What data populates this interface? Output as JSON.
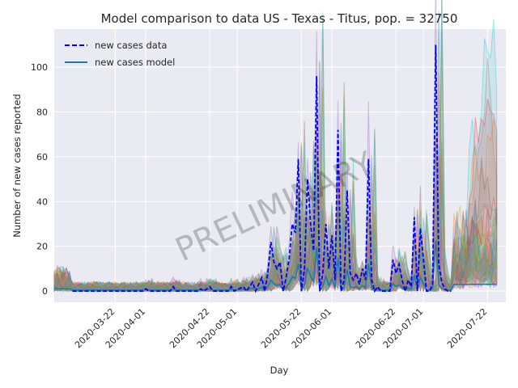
{
  "chart_data": {
    "type": "line",
    "title": "Model comparison to data US - Texas - Titus, pop. = 32750",
    "xlabel": "Day",
    "ylabel": "Number of new cases reported",
    "watermark": "PRELIMINARY",
    "x_range": [
      "2020-03-02",
      "2020-07-28"
    ],
    "ylim": [
      -5,
      117
    ],
    "yticks": [
      0,
      20,
      40,
      60,
      80,
      100
    ],
    "xticks": [
      "2020-03-22",
      "2020-04-01",
      "2020-04-22",
      "2020-05-01",
      "2020-05-22",
      "2020-06-01",
      "2020-06-22",
      "2020-07-01",
      "2020-07-22"
    ],
    "grid": true,
    "background": "#eaeaf2",
    "legend": {
      "position": "top-left",
      "entries": [
        "new cases data",
        "new cases model"
      ]
    },
    "series": [
      {
        "name": "new cases data",
        "style": "dashed",
        "color": "#0000ff",
        "points": [
          [
            "2020-03-08",
            0
          ],
          [
            "2020-03-20",
            0
          ],
          [
            "2020-03-31",
            0
          ],
          [
            "2020-04-01",
            1
          ],
          [
            "2020-04-02",
            0
          ],
          [
            "2020-04-09",
            0
          ],
          [
            "2020-04-10",
            2
          ],
          [
            "2020-04-11",
            0
          ],
          [
            "2020-04-18",
            0
          ],
          [
            "2020-04-19",
            1
          ],
          [
            "2020-04-20",
            0
          ],
          [
            "2020-04-22",
            2
          ],
          [
            "2020-04-23",
            0
          ],
          [
            "2020-04-28",
            0
          ],
          [
            "2020-04-29",
            2
          ],
          [
            "2020-04-30",
            0
          ],
          [
            "2020-05-03",
            2
          ],
          [
            "2020-05-04",
            0
          ],
          [
            "2020-05-06",
            4
          ],
          [
            "2020-05-07",
            0
          ],
          [
            "2020-05-09",
            6
          ],
          [
            "2020-05-10",
            0
          ],
          [
            "2020-05-11",
            8
          ],
          [
            "2020-05-12",
            22
          ],
          [
            "2020-05-13",
            13
          ],
          [
            "2020-05-14",
            10
          ],
          [
            "2020-05-15",
            13
          ],
          [
            "2020-05-16",
            0
          ],
          [
            "2020-05-17",
            6
          ],
          [
            "2020-05-18",
            15
          ],
          [
            "2020-05-19",
            30
          ],
          [
            "2020-05-20",
            26
          ],
          [
            "2020-05-21",
            59
          ],
          [
            "2020-05-22",
            0
          ],
          [
            "2020-05-23",
            10
          ],
          [
            "2020-05-24",
            50
          ],
          [
            "2020-05-25",
            30
          ],
          [
            "2020-05-26",
            18
          ],
          [
            "2020-05-27",
            96
          ],
          [
            "2020-05-28",
            0
          ],
          [
            "2020-05-29",
            8
          ],
          [
            "2020-05-30",
            30
          ],
          [
            "2020-05-31",
            10
          ],
          [
            "2020-06-01",
            25
          ],
          [
            "2020-06-02",
            5
          ],
          [
            "2020-06-03",
            72
          ],
          [
            "2020-06-04",
            0
          ],
          [
            "2020-06-05",
            5
          ],
          [
            "2020-06-06",
            45
          ],
          [
            "2020-06-07",
            8
          ],
          [
            "2020-06-08",
            5
          ],
          [
            "2020-06-09",
            8
          ],
          [
            "2020-06-10",
            3
          ],
          [
            "2020-06-11",
            10
          ],
          [
            "2020-06-12",
            5
          ],
          [
            "2020-06-13",
            59
          ],
          [
            "2020-06-14",
            5
          ],
          [
            "2020-06-15",
            0
          ],
          [
            "2020-06-16",
            2
          ],
          [
            "2020-06-17",
            0
          ],
          [
            "2020-06-20",
            0
          ],
          [
            "2020-06-21",
            14
          ],
          [
            "2020-06-22",
            8
          ],
          [
            "2020-06-23",
            12
          ],
          [
            "2020-06-24",
            5
          ],
          [
            "2020-06-25",
            0
          ],
          [
            "2020-06-26",
            5
          ],
          [
            "2020-06-27",
            2
          ],
          [
            "2020-06-28",
            33
          ],
          [
            "2020-06-29",
            0
          ],
          [
            "2020-06-30",
            28
          ],
          [
            "2020-07-01",
            14
          ],
          [
            "2020-07-02",
            0
          ],
          [
            "2020-07-03",
            0
          ],
          [
            "2020-07-04",
            3
          ],
          [
            "2020-07-05",
            110
          ],
          [
            "2020-07-06",
            12
          ],
          [
            "2020-07-07",
            4
          ],
          [
            "2020-07-08",
            1
          ],
          [
            "2020-07-09",
            0
          ],
          [
            "2020-07-10",
            0
          ]
        ]
      },
      {
        "name": "new cases model",
        "style": "solid",
        "color": "#1f77b4"
      }
    ],
    "ensemble_band_colors": [
      "#1f77b4",
      "#ff7f0e",
      "#2ca02c",
      "#d62728",
      "#9467bd",
      "#8c564b",
      "#e377c2",
      "#7f7f7f",
      "#bcbd22",
      "#17becf"
    ]
  }
}
